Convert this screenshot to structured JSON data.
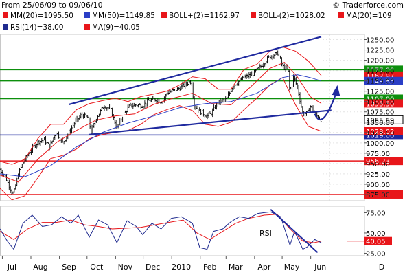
{
  "header": {
    "date_range": "From 25/06/09 to 09/06/10",
    "copyright": "© Traderforce.com"
  },
  "legend_row1": [
    {
      "text": "MM(20)=1095.50",
      "color": "#e8161a"
    },
    {
      "text": "MM(50)=1149.85",
      "color": "#2a3ec6"
    },
    {
      "text": "BOLL+(2)=1162.97",
      "color": "#e8161a"
    },
    {
      "text": "BOLL-(2)=1028.02",
      "color": "#e8161a"
    },
    {
      "text": "MA(20)=109",
      "color": "#e8161a"
    }
  ],
  "legend_row2": [
    {
      "text": "RSI(14)=38.00",
      "color": "#1f2a8f"
    },
    {
      "text": "MA(9)=40.05",
      "color": "#e8161a"
    }
  ],
  "chart_data": [
    {
      "type": "bar",
      "subtype": "ohlc",
      "x_axis": {
        "ticks": [
          "Jul",
          "Aug",
          "Sep",
          "Oct",
          "Nov",
          "Dec",
          "2010",
          "Feb",
          "Mar",
          "Apr",
          "May",
          "Jun",
          "D"
        ]
      },
      "y_axis": {
        "range": [
          860,
          1262.5
        ],
        "ticks": [
          "1250.00",
          "1225.00",
          "1200.00",
          "1175.00",
          "1150.00",
          "1125.00",
          "1100.00",
          "1075.00",
          "1050.00",
          "1025.00",
          "1000.00",
          "975.00",
          "950.00",
          "925.00",
          "900.00",
          "875.00"
        ]
      },
      "close_path": [
        [
          "2009-06-25",
          935
        ],
        [
          "2009-06-30",
          922
        ],
        [
          "2009-07-08",
          880
        ],
        [
          "2009-07-10",
          878
        ],
        [
          "2009-07-15",
          925
        ],
        [
          "2009-07-20",
          952
        ],
        [
          "2009-07-27",
          978
        ],
        [
          "2009-08-05",
          1002
        ],
        [
          "2009-08-12",
          1008
        ],
        [
          "2009-08-18",
          990
        ],
        [
          "2009-08-25",
          1028
        ],
        [
          "2009-09-01",
          1000
        ],
        [
          "2009-09-08",
          1025
        ],
        [
          "2009-09-15",
          1052
        ],
        [
          "2009-09-22",
          1068
        ],
        [
          "2009-09-29",
          1060
        ],
        [
          "2009-10-02",
          1025
        ],
        [
          "2009-10-08",
          1062
        ],
        [
          "2009-10-16",
          1090
        ],
        [
          "2009-10-23",
          1082
        ],
        [
          "2009-10-30",
          1035
        ],
        [
          "2009-11-06",
          1068
        ],
        [
          "2009-11-13",
          1090
        ],
        [
          "2009-11-20",
          1092
        ],
        [
          "2009-11-27",
          1090
        ],
        [
          "2009-12-04",
          1103
        ],
        [
          "2009-12-11",
          1105
        ],
        [
          "2009-12-18",
          1100
        ],
        [
          "2009-12-24",
          1122
        ],
        [
          "2010-01-04",
          1130
        ],
        [
          "2010-01-11",
          1140
        ],
        [
          "2010-01-19",
          1150
        ],
        [
          "2010-01-22",
          1090
        ],
        [
          "2010-01-29",
          1075
        ],
        [
          "2010-02-05",
          1065
        ],
        [
          "2010-02-09",
          1070
        ],
        [
          "2010-02-17",
          1098
        ],
        [
          "2010-02-26",
          1105
        ],
        [
          "2010-03-05",
          1138
        ],
        [
          "2010-03-12",
          1150
        ],
        [
          "2010-03-19",
          1160
        ],
        [
          "2010-03-26",
          1165
        ],
        [
          "2010-04-05",
          1187
        ],
        [
          "2010-04-14",
          1210
        ],
        [
          "2010-04-23",
          1217
        ],
        [
          "2010-04-28",
          1185
        ],
        [
          "2010-05-04",
          1175
        ],
        [
          "2010-05-06",
          1120
        ],
        [
          "2010-05-10",
          1160
        ],
        [
          "2010-05-14",
          1135
        ],
        [
          "2010-05-20",
          1070
        ],
        [
          "2010-05-25",
          1072
        ],
        [
          "2010-05-28",
          1090
        ],
        [
          "2010-06-04",
          1065
        ],
        [
          "2010-06-09",
          1055.69
        ]
      ],
      "bollinger_upper": [
        [
          "2009-06-25",
          955
        ],
        [
          "2009-07-08",
          948
        ],
        [
          "2009-07-22",
          960
        ],
        [
          "2009-08-05",
          1010
        ],
        [
          "2009-08-19",
          1045
        ],
        [
          "2009-09-02",
          1045
        ],
        [
          "2009-09-16",
          1080
        ],
        [
          "2009-09-30",
          1095
        ],
        [
          "2009-10-14",
          1102
        ],
        [
          "2009-10-28",
          1108
        ],
        [
          "2009-11-11",
          1100
        ],
        [
          "2009-11-25",
          1112
        ],
        [
          "2009-12-09",
          1118
        ],
        [
          "2009-12-23",
          1125
        ],
        [
          "2010-01-06",
          1140
        ],
        [
          "2010-01-20",
          1160
        ],
        [
          "2010-02-03",
          1155
        ],
        [
          "2010-02-17",
          1130
        ],
        [
          "2010-03-03",
          1130
        ],
        [
          "2010-03-17",
          1178
        ],
        [
          "2010-03-31",
          1190
        ],
        [
          "2010-04-14",
          1222
        ],
        [
          "2010-04-28",
          1232
        ],
        [
          "2010-05-12",
          1222
        ],
        [
          "2010-05-26",
          1198
        ],
        [
          "2010-06-09",
          1162.97
        ]
      ],
      "bollinger_lower": [
        [
          "2009-06-25",
          890
        ],
        [
          "2009-07-08",
          862
        ],
        [
          "2009-07-22",
          872
        ],
        [
          "2009-08-05",
          915
        ],
        [
          "2009-08-19",
          962
        ],
        [
          "2009-09-02",
          970
        ],
        [
          "2009-09-16",
          985
        ],
        [
          "2009-09-30",
          1010
        ],
        [
          "2009-10-14",
          1020
        ],
        [
          "2009-10-28",
          1025
        ],
        [
          "2009-11-11",
          1030
        ],
        [
          "2009-11-25",
          1045
        ],
        [
          "2009-12-09",
          1068
        ],
        [
          "2009-12-23",
          1080
        ],
        [
          "2010-01-06",
          1090
        ],
        [
          "2010-01-20",
          1078
        ],
        [
          "2010-02-03",
          1045
        ],
        [
          "2010-02-17",
          1040
        ],
        [
          "2010-03-03",
          1050
        ],
        [
          "2010-03-17",
          1080
        ],
        [
          "2010-03-31",
          1108
        ],
        [
          "2010-04-14",
          1140
        ],
        [
          "2010-04-28",
          1158
        ],
        [
          "2010-05-12",
          1092
        ],
        [
          "2010-05-26",
          1040
        ],
        [
          "2010-06-09",
          1028.02
        ]
      ],
      "mm20": [
        [
          "2009-06-25",
          922
        ],
        [
          "2009-07-15",
          905
        ],
        [
          "2009-08-05",
          960
        ],
        [
          "2009-08-26",
          1002
        ],
        [
          "2009-09-16",
          1030
        ],
        [
          "2009-10-07",
          1055
        ],
        [
          "2009-10-28",
          1065
        ],
        [
          "2009-11-18",
          1070
        ],
        [
          "2009-12-09",
          1093
        ],
        [
          "2009-12-30",
          1108
        ],
        [
          "2010-01-20",
          1120
        ],
        [
          "2010-02-10",
          1095
        ],
        [
          "2010-03-03",
          1092
        ],
        [
          "2010-03-24",
          1135
        ],
        [
          "2010-04-14",
          1180
        ],
        [
          "2010-04-30",
          1195
        ],
        [
          "2010-05-14",
          1160
        ],
        [
          "2010-05-28",
          1112
        ],
        [
          "2010-06-09",
          1095.5
        ]
      ],
      "mm50": [
        [
          "2009-06-25",
          925
        ],
        [
          "2009-07-22",
          918
        ],
        [
          "2009-08-19",
          945
        ],
        [
          "2009-09-16",
          990
        ],
        [
          "2009-10-14",
          1025
        ],
        [
          "2009-11-11",
          1048
        ],
        [
          "2009-12-09",
          1065
        ],
        [
          "2010-01-06",
          1085
        ],
        [
          "2010-02-03",
          1095
        ],
        [
          "2010-03-03",
          1100
        ],
        [
          "2010-03-31",
          1120
        ],
        [
          "2010-04-28",
          1158
        ],
        [
          "2010-05-14",
          1165
        ],
        [
          "2010-05-28",
          1158
        ],
        [
          "2010-06-09",
          1149.85
        ]
      ],
      "horizontal_levels": [
        {
          "value": 1177,
          "label": "1177.00",
          "color": "#0d8f0d",
          "label_bg": "#0d8f0d"
        },
        {
          "value": 1150,
          "label": "1150.00",
          "color": "#0d8f0d",
          "label_bg": "#0d8f0d"
        },
        {
          "value": 1107,
          "label": "1107.00",
          "color": "#0d8f0d",
          "label_bg": "#0d8f0d"
        },
        {
          "value": 1019,
          "label": "1019.00",
          "color": "#1f2a9f",
          "label_bg": "#1f2a9f"
        },
        {
          "value": 956.23,
          "label": "956.23",
          "color": "#e8161a",
          "label_bg": "#e8161a"
        },
        {
          "value": 875,
          "label": "875.00",
          "color": "#e8161a",
          "label_bg": "#e8161a"
        }
      ],
      "price_tags": [
        {
          "value": 1162.97,
          "label": "1162.97",
          "bg": "#e8161a"
        },
        {
          "value": 1149.85,
          "label": "1149.85",
          "bg": "#2a3ec6"
        },
        {
          "value": 1095.5,
          "label": "1095.50",
          "bg": "#e8161a"
        },
        {
          "value": 1055.69,
          "label": "1055.69",
          "bg": "#ffffff",
          "color": "#000000"
        },
        {
          "value": 1028.02,
          "label": "1028.02",
          "bg": "#e8161a"
        }
      ],
      "trendlines": [
        {
          "name": "upper-channel",
          "from": [
            "2009-09-08",
            1093
          ],
          "to": [
            "2010-06-09",
            1257
          ],
          "color": "#1f2a9f"
        },
        {
          "name": "lower-support",
          "from": [
            "2009-09-30",
            1020
          ],
          "to": [
            "2010-06-20",
            1079
          ],
          "color": "#1f2a9f"
        }
      ],
      "arrow": {
        "from": [
          "2010-06-10",
          1065
        ],
        "to": [
          "2010-06-25",
          1133
        ],
        "color": "#1f2a9f"
      }
    },
    {
      "type": "line",
      "subtype": "rsi",
      "label": "RSI",
      "y_axis": {
        "range": [
          22,
          83
        ],
        "ticks": [
          "75.00",
          "50.00",
          "25.00"
        ]
      },
      "rsi_value_tag": "40.05",
      "rsi": [
        [
          "2009-06-25",
          55
        ],
        [
          "2009-07-03",
          40
        ],
        [
          "2009-07-10",
          30
        ],
        [
          "2009-07-20",
          62
        ],
        [
          "2009-07-30",
          72
        ],
        [
          "2009-08-10",
          58
        ],
        [
          "2009-08-20",
          60
        ],
        [
          "2009-08-31",
          70
        ],
        [
          "2009-09-10",
          62
        ],
        [
          "2009-09-18",
          72
        ],
        [
          "2009-09-30",
          45
        ],
        [
          "2009-10-10",
          66
        ],
        [
          "2009-10-20",
          60
        ],
        [
          "2009-10-30",
          38
        ],
        [
          "2009-11-10",
          65
        ],
        [
          "2009-11-20",
          58
        ],
        [
          "2009-11-27",
          48
        ],
        [
          "2009-12-07",
          62
        ],
        [
          "2009-12-17",
          55
        ],
        [
          "2009-12-28",
          68
        ],
        [
          "2010-01-08",
          70
        ],
        [
          "2010-01-20",
          62
        ],
        [
          "2010-01-28",
          32
        ],
        [
          "2010-02-05",
          30
        ],
        [
          "2010-02-12",
          52
        ],
        [
          "2010-02-22",
          55
        ],
        [
          "2010-03-03",
          64
        ],
        [
          "2010-03-12",
          70
        ],
        [
          "2010-03-22",
          68
        ],
        [
          "2010-04-01",
          74
        ],
        [
          "2010-04-15",
          76
        ],
        [
          "2010-04-26",
          70
        ],
        [
          "2010-05-06",
          35
        ],
        [
          "2010-05-11",
          52
        ],
        [
          "2010-05-20",
          30
        ],
        [
          "2010-05-25",
          33
        ],
        [
          "2010-06-02",
          42
        ],
        [
          "2010-06-09",
          38
        ]
      ],
      "ma9": [
        [
          "2009-06-25",
          52
        ],
        [
          "2009-07-10",
          42
        ],
        [
          "2009-07-25",
          55
        ],
        [
          "2009-08-10",
          63
        ],
        [
          "2009-08-25",
          63
        ],
        [
          "2009-09-10",
          66
        ],
        [
          "2009-09-25",
          60
        ],
        [
          "2009-10-10",
          58
        ],
        [
          "2009-10-25",
          55
        ],
        [
          "2009-11-10",
          56
        ],
        [
          "2009-11-25",
          57
        ],
        [
          "2009-12-10",
          60
        ],
        [
          "2009-12-25",
          63
        ],
        [
          "2010-01-10",
          66
        ],
        [
          "2010-01-25",
          50
        ],
        [
          "2010-02-08",
          42
        ],
        [
          "2010-02-22",
          52
        ],
        [
          "2010-03-08",
          62
        ],
        [
          "2010-03-22",
          68
        ],
        [
          "2010-04-08",
          72
        ],
        [
          "2010-04-22",
          73
        ],
        [
          "2010-05-06",
          55
        ],
        [
          "2010-05-20",
          40
        ],
        [
          "2010-06-01",
          38
        ],
        [
          "2010-06-09",
          40.05
        ]
      ],
      "trendline": {
        "from": [
          "2010-04-15",
          79
        ],
        "to": [
          "2010-06-05",
          26
        ],
        "color": "#1f2a9f"
      }
    }
  ]
}
